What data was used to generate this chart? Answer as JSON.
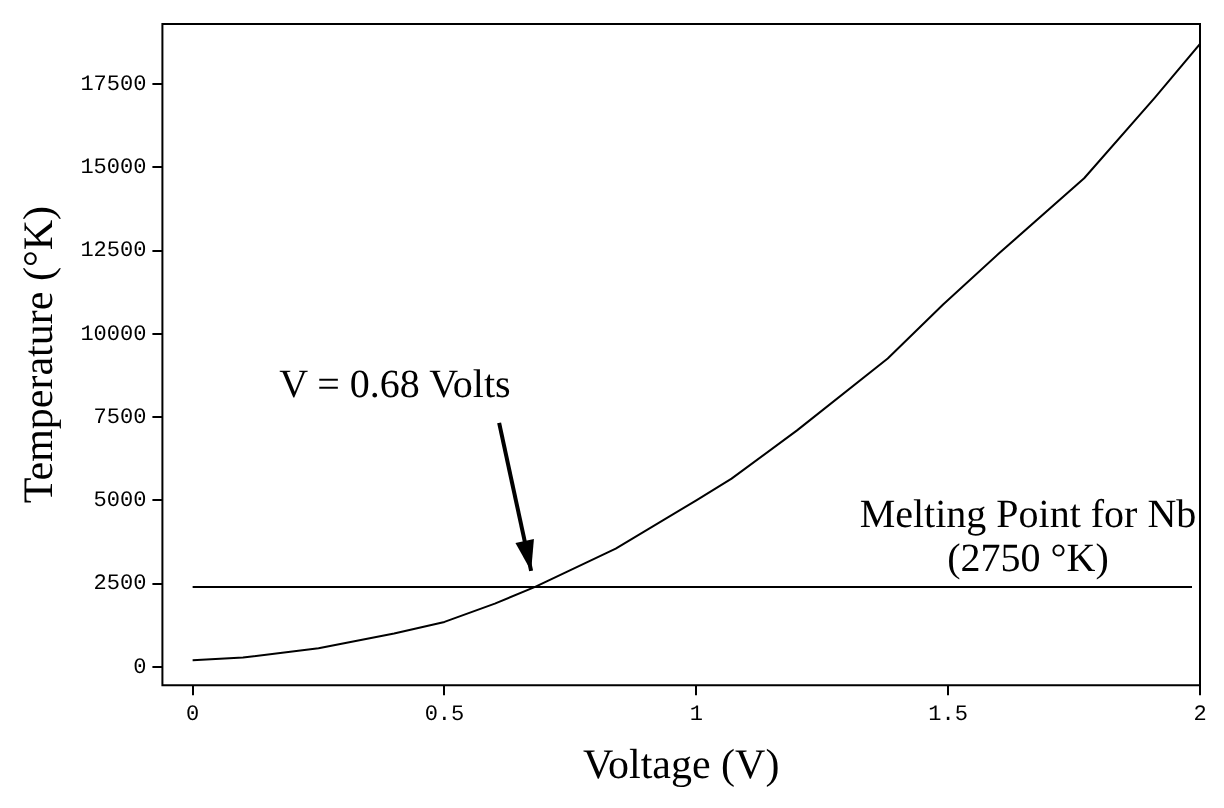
{
  "chart_data": {
    "type": "line",
    "xlabel": "Voltage (V)",
    "ylabel": "Temperature (°K)",
    "x": [
      0,
      0.1,
      0.25,
      0.4,
      0.5,
      0.6,
      0.68,
      0.84,
      1.0,
      1.07,
      1.2,
      1.38,
      1.49,
      1.6,
      1.77,
      1.91,
      2.0
    ],
    "series": [
      {
        "color": "#000000",
        "values": [
          200,
          280,
          560,
          1000,
          1350,
          1900,
          2400,
          3550,
          5000,
          5650,
          7100,
          9260,
          10880,
          12400,
          14670,
          17080,
          18700
        ]
      }
    ],
    "xlim": [
      -0.06,
      2.0
    ],
    "xticks": [
      0,
      0.5,
      1,
      1.5,
      2
    ],
    "ylim": [
      -550,
      19300
    ],
    "yticks": [
      0,
      2500,
      5000,
      7500,
      10000,
      12500,
      15000,
      17500
    ],
    "ref_lines": [
      {
        "axis": "y",
        "value": 2400,
        "label": "Melting Point for Nb\n(2750 °K)",
        "color": "#000000"
      }
    ],
    "annotations": [
      {
        "text": "V = 0.68 Volts",
        "x": 0.68,
        "y": 2400
      }
    ],
    "grid": false,
    "legend": false,
    "marker": "none",
    "line_style": "solid"
  }
}
